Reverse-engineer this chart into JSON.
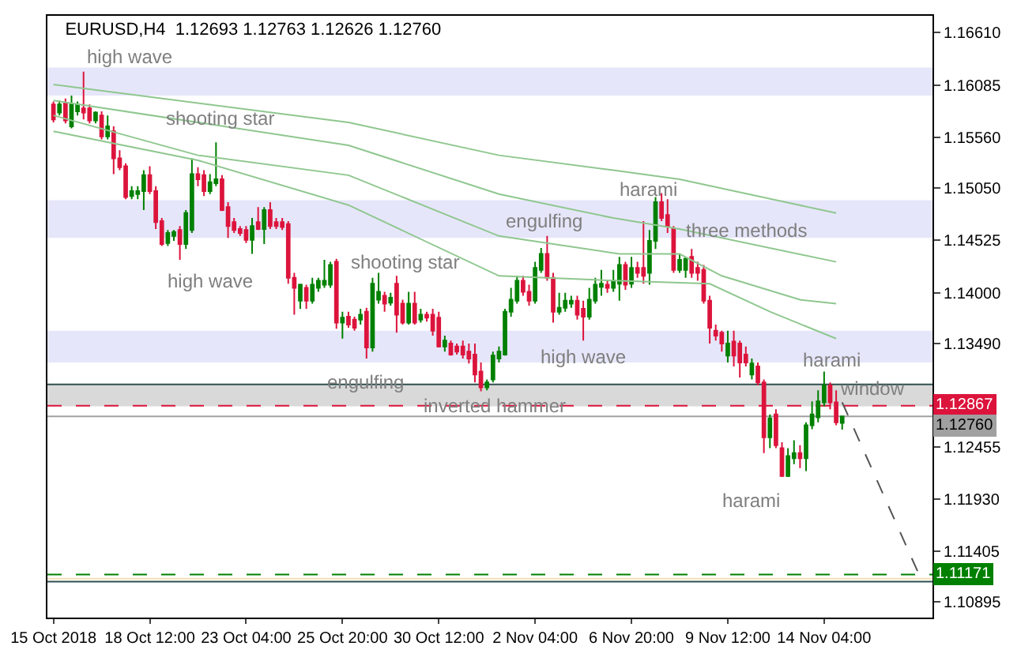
{
  "chart_data": {
    "type": "candlestick",
    "title": "EURUSD,H4  1.12693 1.12763 1.12626 1.12760",
    "categories": [
      "15 Oct 2018",
      null,
      null,
      null,
      null,
      null,
      null,
      null,
      null,
      null,
      null,
      null,
      null,
      null,
      null,
      null,
      "18 Oct 12:00",
      null,
      null,
      null,
      null,
      null,
      null,
      null,
      null,
      null,
      null,
      null,
      null,
      null,
      null,
      null,
      "23 Oct 04:00",
      null,
      null,
      null,
      null,
      null,
      null,
      null,
      null,
      null,
      null,
      null,
      null,
      null,
      null,
      null,
      "25 Oct 20:00",
      null,
      null,
      null,
      null,
      null,
      null,
      null,
      null,
      null,
      null,
      null,
      null,
      null,
      null,
      null,
      "30 Oct 12:00",
      null,
      null,
      null,
      null,
      null,
      null,
      null,
      null,
      null,
      null,
      null,
      null,
      null,
      null,
      null,
      "2 Nov 04:00",
      null,
      null,
      null,
      null,
      null,
      null,
      null,
      null,
      null,
      null,
      null,
      null,
      null,
      null,
      null,
      "6 Nov 20:00",
      null,
      null,
      null,
      null,
      null,
      null,
      null,
      null,
      null,
      null,
      null,
      null,
      null,
      null,
      null,
      "9 Nov 12:00",
      null,
      null,
      null,
      null,
      null,
      null,
      null,
      null,
      null,
      null,
      null,
      null,
      null,
      null,
      null,
      "14 Nov 04:00",
      null,
      null,
      null,
      null,
      null,
      null,
      null,
      null,
      null,
      null,
      null,
      null,
      null,
      null,
      null,
      null
    ],
    "ohlc": [
      [
        1.1589,
        1.1592,
        1.1571,
        1.1574
      ],
      [
        1.1581,
        1.1593,
        1.1578,
        1.1589
      ],
      [
        1.159,
        1.1595,
        1.157,
        1.1573
      ],
      [
        1.1567,
        1.1598,
        1.1565,
        1.1589
      ],
      [
        1.1582,
        1.1592,
        1.1578,
        1.1589
      ],
      [
        1.1585,
        1.1622,
        1.1574,
        1.1581
      ],
      [
        1.1585,
        1.1589,
        1.157,
        1.1573
      ],
      [
        1.1573,
        1.1582,
        1.157,
        1.1581
      ],
      [
        1.1578,
        1.1582,
        1.1554,
        1.1557
      ],
      [
        1.1557,
        1.1578,
        1.1554,
        1.1567
      ],
      [
        1.1562,
        1.1567,
        1.1519,
        1.1535
      ],
      [
        1.1535,
        1.1543,
        1.1523,
        1.1526
      ],
      [
        1.1527,
        1.153,
        1.1494,
        1.1496
      ],
      [
        1.1497,
        1.1507,
        1.1494,
        1.1502
      ],
      [
        1.1499,
        1.1507,
        1.1494,
        1.1502
      ],
      [
        1.1502,
        1.1523,
        1.1483,
        1.1518
      ],
      [
        1.1518,
        1.1527,
        1.1499,
        1.1502
      ],
      [
        1.1502,
        1.1507,
        1.1464,
        1.1471
      ],
      [
        1.1472,
        1.1475,
        1.1447,
        1.1449
      ],
      [
        1.145,
        1.1463,
        1.1447,
        1.146
      ],
      [
        1.1457,
        1.1463,
        1.1452,
        1.1461
      ],
      [
        1.1463,
        1.1467,
        1.1433,
        1.1449
      ],
      [
        1.1449,
        1.1483,
        1.1444,
        1.148
      ],
      [
        1.1463,
        1.1535,
        1.146,
        1.1519
      ],
      [
        1.1519,
        1.1526,
        1.1507,
        1.1514
      ],
      [
        1.1518,
        1.1523,
        1.1497,
        1.1502
      ],
      [
        1.1502,
        1.1519,
        1.1499,
        1.1511
      ],
      [
        1.151,
        1.1551,
        1.1507,
        1.1514
      ],
      [
        1.1514,
        1.1518,
        1.1482,
        1.1483
      ],
      [
        1.1486,
        1.1491,
        1.1455,
        1.1467
      ],
      [
        1.1471,
        1.1475,
        1.146,
        1.1463
      ],
      [
        1.1464,
        1.1467,
        1.1457,
        1.146
      ],
      [
        1.1463,
        1.1467,
        1.145,
        1.1453
      ],
      [
        1.1453,
        1.1475,
        1.1439,
        1.1467
      ],
      [
        1.1471,
        1.1486,
        1.1463,
        1.1464
      ],
      [
        1.1464,
        1.1486,
        1.1449,
        1.1483
      ],
      [
        1.1483,
        1.1491,
        1.1464,
        1.1467
      ],
      [
        1.1471,
        1.1475,
        1.1464,
        1.1467
      ],
      [
        1.1471,
        1.1475,
        1.1463,
        1.1466
      ],
      [
        1.1469,
        1.1472,
        1.1409,
        1.1415
      ],
      [
        1.1415,
        1.142,
        1.1378,
        1.1405
      ],
      [
        1.1392,
        1.1409,
        1.1384,
        1.1408
      ],
      [
        1.1405,
        1.1408,
        1.1384,
        1.1392
      ],
      [
        1.1392,
        1.1415,
        1.1389,
        1.1408
      ],
      [
        1.1405,
        1.1415,
        1.1401,
        1.1412
      ],
      [
        1.1408,
        1.1433,
        1.1405,
        1.1412
      ],
      [
        1.1408,
        1.1431,
        1.1405,
        1.1428
      ],
      [
        1.1431,
        1.1434,
        1.1364,
        1.137
      ],
      [
        1.137,
        1.1381,
        1.1354,
        1.1375
      ],
      [
        1.1376,
        1.1381,
        1.1365,
        1.1368
      ],
      [
        1.1373,
        1.1376,
        1.1362,
        1.1365
      ],
      [
        1.1373,
        1.1384,
        1.1368,
        1.1378
      ],
      [
        1.1381,
        1.1385,
        1.1334,
        1.1345
      ],
      [
        1.1345,
        1.1415,
        1.1341,
        1.1409
      ],
      [
        1.1393,
        1.142,
        1.1389,
        1.1401
      ],
      [
        1.1397,
        1.1401,
        1.1381,
        1.1389
      ],
      [
        1.139,
        1.14,
        1.1387,
        1.1395
      ],
      [
        1.1409,
        1.1417,
        1.136,
        1.1378
      ],
      [
        1.1389,
        1.1393,
        1.1368,
        1.137
      ],
      [
        1.137,
        1.1401,
        1.1368,
        1.1389
      ],
      [
        1.1389,
        1.1401,
        1.1368,
        1.137
      ],
      [
        1.1373,
        1.1384,
        1.137,
        1.1378
      ],
      [
        1.1378,
        1.1381,
        1.1371,
        1.1375
      ],
      [
        1.1378,
        1.1384,
        1.1357,
        1.1362
      ],
      [
        1.1375,
        1.1381,
        1.1345,
        1.1346
      ],
      [
        1.1346,
        1.1357,
        1.1341,
        1.1352
      ],
      [
        1.1349,
        1.1352,
        1.1337,
        1.1338
      ],
      [
        1.1346,
        1.1349,
        1.1338,
        1.1341
      ],
      [
        1.1346,
        1.1352,
        1.1334,
        1.1338
      ],
      [
        1.1341,
        1.1349,
        1.1329,
        1.1334
      ],
      [
        1.1338,
        1.1349,
        1.131,
        1.1318
      ],
      [
        1.1321,
        1.133,
        1.1301,
        1.1305
      ],
      [
        1.1305,
        1.1313,
        1.1302,
        1.131
      ],
      [
        1.1313,
        1.1341,
        1.131,
        1.1337
      ],
      [
        1.1334,
        1.1346,
        1.133,
        1.1341
      ],
      [
        1.1338,
        1.1384,
        1.1337,
        1.1381
      ],
      [
        1.1381,
        1.1405,
        1.1376,
        1.1393
      ],
      [
        1.1392,
        1.1417,
        1.1389,
        1.1412
      ],
      [
        1.1412,
        1.1417,
        1.1397,
        1.1401
      ],
      [
        1.1401,
        1.1408,
        1.1387,
        1.1392
      ],
      [
        1.1392,
        1.1431,
        1.1389,
        1.1425
      ],
      [
        1.1423,
        1.1445,
        1.142,
        1.1439
      ],
      [
        1.1439,
        1.1457,
        1.1412,
        1.1415
      ],
      [
        1.1415,
        1.142,
        1.137,
        1.1381
      ],
      [
        1.1381,
        1.14,
        1.1378,
        1.1385
      ],
      [
        1.1385,
        1.14,
        1.1381,
        1.1392
      ],
      [
        1.1389,
        1.1397,
        1.1385,
        1.1392
      ],
      [
        1.1392,
        1.1397,
        1.1373,
        1.1378
      ],
      [
        1.1384,
        1.1392,
        1.1352,
        1.1376
      ],
      [
        1.1376,
        1.1405,
        1.1373,
        1.1393
      ],
      [
        1.1392,
        1.1415,
        1.1389,
        1.1408
      ],
      [
        1.1406,
        1.1423,
        1.1397,
        1.1409
      ],
      [
        1.1408,
        1.1412,
        1.14,
        1.1405
      ],
      [
        1.1405,
        1.1423,
        1.1401,
        1.1412
      ],
      [
        1.1409,
        1.1436,
        1.1392,
        1.1428
      ],
      [
        1.1428,
        1.1431,
        1.1403,
        1.1408
      ],
      [
        1.1409,
        1.1436,
        1.1405,
        1.1425
      ],
      [
        1.1425,
        1.1431,
        1.1415,
        1.142
      ],
      [
        1.1425,
        1.1472,
        1.1409,
        1.1417
      ],
      [
        1.142,
        1.1463,
        1.1408,
        1.1452
      ],
      [
        1.1452,
        1.1496,
        1.1444,
        1.1491
      ],
      [
        1.1491,
        1.15,
        1.1472,
        1.1475
      ],
      [
        1.1478,
        1.1494,
        1.146,
        1.1467
      ],
      [
        1.1464,
        1.1467,
        1.142,
        1.1423
      ],
      [
        1.1423,
        1.1439,
        1.142,
        1.1433
      ],
      [
        1.1423,
        1.1436,
        1.1415,
        1.1434
      ],
      [
        1.1436,
        1.1444,
        1.1415,
        1.142
      ],
      [
        1.1425,
        1.1431,
        1.1412,
        1.142
      ],
      [
        1.1423,
        1.1428,
        1.1389,
        1.1392
      ],
      [
        1.1392,
        1.1397,
        1.1349,
        1.1365
      ],
      [
        1.1362,
        1.1368,
        1.1352,
        1.1357
      ],
      [
        1.136,
        1.1362,
        1.1341,
        1.1349
      ],
      [
        1.1337,
        1.1362,
        1.133,
        1.1349
      ],
      [
        1.1351,
        1.1362,
        1.1326,
        1.1337
      ],
      [
        1.1349,
        1.1352,
        1.1315,
        1.133
      ],
      [
        1.1338,
        1.1346,
        1.1326,
        1.133
      ],
      [
        1.1318,
        1.1334,
        1.1313,
        1.1329
      ],
      [
        1.1326,
        1.133,
        1.1307,
        1.131
      ],
      [
        1.131,
        1.1313,
        1.1239,
        1.1255
      ],
      [
        1.1255,
        1.1278,
        1.1244,
        1.1274
      ],
      [
        1.1278,
        1.1283,
        1.1244,
        1.1247
      ],
      [
        1.1244,
        1.125,
        1.1215,
        1.1216
      ],
      [
        1.1216,
        1.1244,
        1.1215,
        1.1236
      ],
      [
        1.1234,
        1.1252,
        1.1228,
        1.1239
      ],
      [
        1.1239,
        1.1247,
        1.1224,
        1.1234
      ],
      [
        1.1234,
        1.127,
        1.1221,
        1.1267
      ],
      [
        1.1267,
        1.1291,
        1.1263,
        1.1278
      ],
      [
        1.1275,
        1.1302,
        1.127,
        1.1291
      ],
      [
        1.129,
        1.1321,
        1.1286,
        1.1307
      ],
      [
        1.1307,
        1.131,
        1.1283,
        1.129
      ],
      [
        1.129,
        1.1302,
        1.1267,
        1.127
      ],
      [
        1.12693,
        1.12763,
        1.12626,
        1.1276
      ],
      null,
      null,
      null,
      null,
      null,
      null,
      null,
      null,
      null,
      null,
      null,
      null,
      null
    ],
    "series": [
      {
        "type": "line",
        "color": "#8fc78f",
        "values": [
          1.1609,
          null,
          null,
          null,
          null,
          null,
          null,
          null,
          null,
          null,
          null,
          null,
          null,
          null,
          null,
          null,
          null,
          null,
          null,
          null,
          null,
          null,
          null,
          null,
          null,
          null,
          null,
          null,
          null,
          null,
          null,
          null,
          null,
          null,
          null,
          null,
          null,
          null,
          null,
          null,
          null,
          null,
          null,
          null,
          null,
          null,
          null,
          null,
          null,
          1.1571,
          null,
          null,
          null,
          null,
          null,
          null,
          null,
          null,
          null,
          null,
          null,
          null,
          null,
          null,
          null,
          null,
          null,
          null,
          null,
          null,
          null,
          null,
          null,
          null,
          1.1538,
          null,
          null,
          null,
          null,
          null,
          null,
          null,
          null,
          null,
          null,
          null,
          null,
          null,
          null,
          null,
          null,
          null,
          null,
          1.1523,
          null,
          null,
          null,
          null,
          null,
          null,
          null,
          null,
          null,
          null,
          1.1514,
          null,
          null,
          null,
          null,
          null,
          null,
          null,
          null,
          null,
          null,
          null,
          null,
          null,
          null,
          null,
          null,
          null,
          null,
          null,
          null,
          null,
          null,
          null,
          null,
          null,
          1.148,
          null,
          null,
          null,
          null,
          null,
          null,
          null,
          null,
          null,
          null,
          null,
          null,
          null,
          null
        ]
      },
      {
        "type": "line",
        "color": "#8fc78f",
        "values": [
          1.1593,
          null,
          null,
          null,
          null,
          null,
          null,
          null,
          null,
          null,
          null,
          null,
          null,
          null,
          null,
          null,
          null,
          null,
          null,
          null,
          null,
          null,
          null,
          null,
          null,
          null,
          null,
          null,
          null,
          null,
          null,
          null,
          null,
          null,
          null,
          null,
          null,
          null,
          null,
          null,
          null,
          null,
          null,
          null,
          null,
          null,
          null,
          null,
          null,
          1.1548,
          null,
          null,
          null,
          null,
          null,
          null,
          null,
          null,
          null,
          null,
          null,
          null,
          null,
          null,
          null,
          null,
          null,
          null,
          null,
          null,
          null,
          null,
          null,
          null,
          1.1499,
          null,
          null,
          null,
          null,
          null,
          null,
          null,
          null,
          null,
          null,
          null,
          null,
          null,
          null,
          null,
          null,
          null,
          null,
          1.1475,
          null,
          null,
          null,
          null,
          null,
          null,
          null,
          null,
          null,
          null,
          1.1464,
          null,
          null,
          null,
          null,
          null,
          null,
          null,
          null,
          null,
          null,
          null,
          null,
          null,
          null,
          null,
          null,
          null,
          null,
          null,
          null,
          null,
          null,
          null,
          null,
          null,
          1.1431,
          null,
          null,
          null,
          null,
          null,
          null,
          null,
          null,
          null,
          null,
          null,
          null,
          null,
          null
        ]
      },
      {
        "type": "line",
        "color": "#8fc78f",
        "values": [
          1.1578,
          null,
          null,
          null,
          null,
          null,
          null,
          null,
          null,
          null,
          null,
          null,
          null,
          null,
          null,
          null,
          null,
          null,
          null,
          null,
          null,
          null,
          null,
          null,
          1.1538,
          null,
          null,
          null,
          null,
          null,
          null,
          null,
          null,
          null,
          null,
          null,
          null,
          null,
          null,
          null,
          null,
          null,
          null,
          null,
          null,
          null,
          null,
          null,
          null,
          1.1518,
          null,
          null,
          null,
          null,
          null,
          null,
          null,
          null,
          null,
          null,
          null,
          null,
          null,
          null,
          null,
          null,
          null,
          null,
          null,
          null,
          null,
          null,
          null,
          null,
          1.1457,
          null,
          null,
          null,
          null,
          null,
          null,
          null,
          null,
          null,
          null,
          null,
          null,
          null,
          null,
          null,
          null,
          null,
          null,
          null,
          1.1439,
          null,
          null,
          null,
          null,
          null,
          null,
          null,
          null,
          null,
          1.1439,
          null,
          null,
          null,
          null,
          null,
          null,
          1.1417,
          null,
          null,
          null,
          null,
          null,
          null,
          null,
          null,
          null,
          null,
          null,
          null,
          1.1393,
          null,
          null,
          null,
          null,
          null,
          1.1389,
          null,
          null,
          null,
          null,
          null,
          null,
          null,
          null,
          null,
          null,
          null,
          null,
          null,
          null
        ]
      },
      {
        "type": "line",
        "color": "#8fc78f",
        "values": [
          1.1562,
          null,
          null,
          null,
          null,
          null,
          null,
          null,
          null,
          null,
          null,
          null,
          null,
          null,
          null,
          null,
          null,
          null,
          null,
          null,
          null,
          null,
          null,
          null,
          1.1533,
          null,
          null,
          null,
          null,
          null,
          null,
          null,
          null,
          null,
          null,
          null,
          null,
          null,
          null,
          null,
          null,
          null,
          null,
          null,
          null,
          null,
          null,
          null,
          null,
          1.1488,
          null,
          null,
          null,
          null,
          null,
          null,
          null,
          null,
          null,
          null,
          null,
          null,
          null,
          null,
          null,
          null,
          null,
          null,
          null,
          null,
          null,
          null,
          null,
          null,
          1.1417,
          null,
          null,
          null,
          null,
          null,
          null,
          null,
          null,
          null,
          null,
          null,
          null,
          null,
          null,
          null,
          null,
          null,
          null,
          null,
          1.1412,
          null,
          null,
          null,
          null,
          null,
          null,
          null,
          null,
          null,
          null,
          null,
          null,
          null,
          null,
          1.1409,
          null,
          null,
          null,
          null,
          null,
          null,
          null,
          null,
          null,
          1.1381,
          null,
          null,
          null,
          null,
          null,
          null,
          null,
          null,
          null,
          null,
          1.1354,
          null,
          null,
          null,
          null,
          null,
          null,
          null,
          null,
          null,
          null,
          null,
          null,
          null,
          null
        ]
      },
      {
        "type": "line",
        "color": "#555555",
        "line_style": "dashed",
        "values": [
          null,
          null,
          null,
          null,
          null,
          null,
          null,
          null,
          null,
          null,
          null,
          null,
          null,
          null,
          null,
          null,
          null,
          null,
          null,
          null,
          null,
          null,
          null,
          null,
          null,
          null,
          null,
          null,
          null,
          null,
          null,
          null,
          null,
          null,
          null,
          null,
          null,
          null,
          null,
          null,
          null,
          null,
          null,
          null,
          null,
          null,
          null,
          null,
          null,
          null,
          null,
          null,
          null,
          null,
          null,
          null,
          null,
          null,
          null,
          null,
          null,
          null,
          null,
          null,
          null,
          null,
          null,
          null,
          null,
          null,
          null,
          null,
          null,
          null,
          null,
          null,
          null,
          null,
          null,
          null,
          null,
          null,
          null,
          null,
          null,
          null,
          null,
          null,
          null,
          null,
          null,
          null,
          null,
          null,
          null,
          null,
          null,
          null,
          null,
          null,
          null,
          null,
          null,
          null,
          null,
          null,
          null,
          null,
          null,
          null,
          null,
          null,
          null,
          null,
          null,
          null,
          null,
          null,
          null,
          null,
          null,
          null,
          null,
          null,
          null,
          null,
          null,
          null,
          null,
          null,
          null,
          1.129,
          null,
          null,
          null,
          null,
          null,
          null,
          null,
          null,
          null,
          null,
          null,
          null,
          1.1114
        ]
      }
    ],
    "ylim": [
      1.1074,
      1.1678
    ],
    "yticks": [
      {
        "value": 1.1661,
        "label": "1.16610"
      },
      {
        "value": 1.16085,
        "label": "1.16085"
      },
      {
        "value": 1.1556,
        "label": "1.15560"
      },
      {
        "value": 1.1505,
        "label": "1.15050"
      },
      {
        "value": 1.14525,
        "label": "1.14525"
      },
      {
        "value": 1.14,
        "label": "1.14000"
      },
      {
        "value": 1.1349,
        "label": "1.13490"
      },
      {
        "value": 1.12965,
        "label": null
      },
      {
        "value": 1.12455,
        "label": "1.12455"
      },
      {
        "value": 1.1193,
        "label": "1.11930"
      },
      {
        "value": 1.11405,
        "label": "1.11405"
      },
      {
        "value": 1.10895,
        "label": "1.10895"
      }
    ],
    "bands": [
      {
        "axis": "y",
        "from": 1.1598,
        "to": 1.1626,
        "color": "#e6e6fa"
      },
      {
        "axis": "y",
        "from": 1.1455,
        "to": 1.1493,
        "color": "#e6e6fa"
      },
      {
        "axis": "y",
        "from": 1.133,
        "to": 1.1362,
        "color": "#e6e6fa"
      },
      {
        "axis": "y",
        "from": 1.1286,
        "to": 1.1308,
        "color": "#d9d9d9"
      }
    ],
    "ref_lines": [
      {
        "axis": "y",
        "value": 1.1308,
        "color": "#2f4f4f",
        "line_style": "solid"
      },
      {
        "axis": "y",
        "value": 1.12867,
        "label": "1.12867",
        "color": "#dc143c",
        "line_style": "dashed"
      },
      {
        "axis": "y",
        "value": 1.1276,
        "label": "1.12760",
        "color": "#a0a0a0",
        "line_style": "solid"
      },
      {
        "axis": "y",
        "value": 1.11171,
        "label": "1.11171",
        "color": "#008000",
        "line_style": "dashed"
      },
      {
        "axis": "y",
        "value": 1.1113,
        "color": "#f5deb3",
        "line_style": "solid"
      },
      {
        "axis": "y",
        "value": 1.111,
        "color": "#2f4f4f",
        "line_style": "solid"
      }
    ],
    "annotations": [
      "high wave",
      "shooting star",
      "high wave",
      "harami",
      "engulfing",
      "three methods",
      "shooting star",
      "engulfing",
      "high wave",
      "inverted hammer",
      "harami",
      "window",
      "harami"
    ]
  }
}
